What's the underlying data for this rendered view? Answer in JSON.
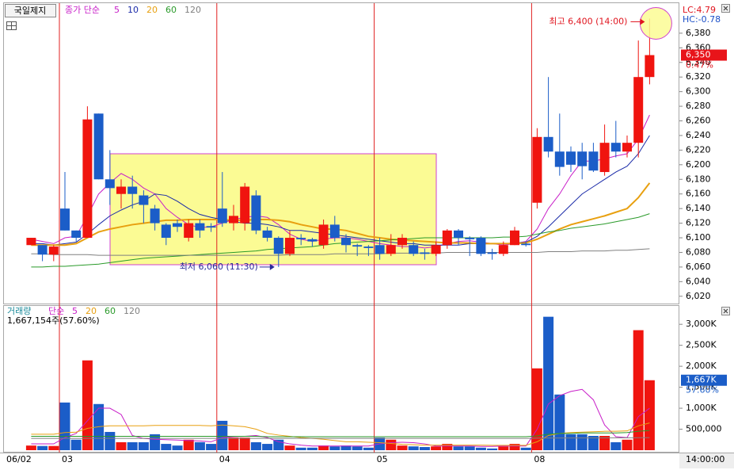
{
  "chart_data": [
    {
      "type": "candlestick",
      "title": "국일제지",
      "legend_title": "종가 단순",
      "categories": [
        "06/02",
        null,
        null,
        "03",
        null,
        null,
        null,
        null,
        null,
        null,
        null,
        null,
        null,
        null,
        null,
        null,
        null,
        "04",
        null,
        null,
        null,
        null,
        null,
        null,
        null,
        null,
        null,
        null,
        null,
        null,
        null,
        "05",
        null,
        null,
        null,
        null,
        null,
        null,
        null,
        null,
        null,
        null,
        null,
        null,
        null,
        "08",
        null,
        null,
        null,
        null,
        null,
        null,
        null,
        null,
        null,
        null
      ],
      "open": [
        6090,
        6090,
        6077,
        6140,
        6110,
        6100,
        6270,
        6180,
        6160,
        6170,
        6158,
        6140,
        6118,
        6120,
        6100,
        6120,
        6116,
        6140,
        6120,
        6120,
        6158,
        6110,
        6100,
        6078,
        6100,
        6098,
        6090,
        6118,
        6100,
        6090,
        6088,
        6090,
        6078,
        6090,
        6090,
        6080,
        6078,
        6090,
        6110,
        6100,
        6100,
        6080,
        6078,
        6090,
        6092,
        6148,
        6238,
        6218,
        6218,
        6218,
        6218,
        6190,
        6230,
        6218,
        6230,
        6320
      ],
      "high": [
        6100,
        6090,
        6090,
        6190,
        6110,
        6280,
        6270,
        6220,
        6180,
        6185,
        6165,
        6145,
        6120,
        6125,
        6125,
        6125,
        6120,
        6190,
        6145,
        6175,
        6165,
        6115,
        6102,
        6110,
        6105,
        6100,
        6125,
        6130,
        6105,
        6092,
        6090,
        6100,
        6105,
        6105,
        6095,
        6085,
        6095,
        6112,
        6112,
        6102,
        6102,
        6085,
        6095,
        6115,
        6095,
        6250,
        6320,
        6270,
        6225,
        6230,
        6230,
        6255,
        6260,
        6240,
        6370,
        6400
      ],
      "low": [
        6090,
        6068,
        6068,
        6110,
        6095,
        6100,
        6180,
        6145,
        6140,
        6140,
        6120,
        6110,
        6090,
        6108,
        6095,
        6100,
        6108,
        6115,
        6110,
        6110,
        6105,
        6095,
        6060,
        6075,
        6090,
        6088,
        6085,
        6095,
        6080,
        6075,
        6075,
        6070,
        6075,
        6085,
        6075,
        6070,
        6075,
        6085,
        6090,
        6075,
        6075,
        6070,
        6075,
        6090,
        6088,
        6140,
        6210,
        6185,
        6190,
        6180,
        6190,
        6185,
        6210,
        6210,
        6210,
        6310
      ],
      "close": [
        6100,
        6077,
        6088,
        6110,
        6100,
        6262,
        6180,
        6168,
        6170,
        6160,
        6145,
        6120,
        6100,
        6115,
        6120,
        6110,
        6114,
        6120,
        6130,
        6170,
        6110,
        6100,
        6078,
        6100,
        6098,
        6095,
        6118,
        6100,
        6090,
        6088,
        6086,
        6078,
        6090,
        6100,
        6078,
        6078,
        6090,
        6110,
        6100,
        6098,
        6078,
        6078,
        6090,
        6110,
        6090,
        6238,
        6218,
        6197,
        6200,
        6198,
        6192,
        6230,
        6218,
        6230,
        6320,
        6350
      ],
      "up_color": "#f0140f",
      "down_color": "#1b5dc8",
      "ylim": [
        6010,
        6420
      ],
      "yticks": [
        {
          "value": 6020,
          "label": "6,020"
        },
        {
          "value": 6040,
          "label": "6,040"
        },
        {
          "value": 6060,
          "label": "6,060"
        },
        {
          "value": 6080,
          "label": "6,080"
        },
        {
          "value": 6100,
          "label": "6,100"
        },
        {
          "value": 6120,
          "label": "6,120"
        },
        {
          "value": 6140,
          "label": "6,140"
        },
        {
          "value": 6160,
          "label": "6,160"
        },
        {
          "value": 6180,
          "label": "6,180"
        },
        {
          "value": 6200,
          "label": "6,200"
        },
        {
          "value": 6220,
          "label": "6,220"
        },
        {
          "value": 6240,
          "label": "6,240"
        },
        {
          "value": 6260,
          "label": "6,260"
        },
        {
          "value": 6280,
          "label": "6,280"
        },
        {
          "value": 6300,
          "label": "6,300"
        },
        {
          "value": 6320,
          "label": "6,320"
        },
        {
          "value": 6340,
          "label": "6,340"
        },
        {
          "value": 6360,
          "label": "6,360"
        },
        {
          "value": 6380,
          "label": "6,380"
        }
      ],
      "grid": false,
      "series": [
        {
          "name": "5",
          "color": "#c81ec8",
          "values": [
            6098,
            6095,
            6092,
            6100,
            6102,
            6130,
            6160,
            6175,
            6188,
            6180,
            6168,
            6160,
            6140,
            6128,
            6118,
            6114,
            6115,
            6120,
            6125,
            6128,
            6130,
            6128,
            6118,
            6105,
            6098,
            6095,
            6098,
            6100,
            6100,
            6098,
            6095,
            6092,
            6090,
            6088,
            6088,
            6086,
            6088,
            6092,
            6095,
            6096,
            6094,
            6092,
            6090,
            6092,
            6095,
            6112,
            6140,
            6160,
            6185,
            6205,
            6205,
            6208,
            6212,
            6215,
            6235,
            6268
          ]
        },
        {
          "name": "10",
          "color": "#1a2aa8",
          "values": [
            6092,
            6092,
            6090,
            6092,
            6094,
            6105,
            6118,
            6130,
            6138,
            6145,
            6150,
            6160,
            6158,
            6150,
            6140,
            6132,
            6128,
            6125,
            6122,
            6120,
            6120,
            6118,
            6115,
            6110,
            6110,
            6108,
            6106,
            6104,
            6102,
            6100,
            6098,
            6096,
            6094,
            6092,
            6092,
            6090,
            6090,
            6090,
            6090,
            6092,
            6092,
            6092,
            6092,
            6093,
            6094,
            6102,
            6115,
            6130,
            6145,
            6160,
            6170,
            6180,
            6190,
            6198,
            6215,
            6240
          ]
        },
        {
          "name": "20",
          "color": "#e8a010",
          "values": [
            6090,
            6090,
            6090,
            6090,
            6092,
            6100,
            6108,
            6112,
            6115,
            6118,
            6120,
            6122,
            6124,
            6124,
            6125,
            6125,
            6125,
            6125,
            6124,
            6124,
            6125,
            6125,
            6124,
            6122,
            6118,
            6115,
            6112,
            6112,
            6110,
            6106,
            6102,
            6100,
            6098,
            6097,
            6096,
            6095,
            6094,
            6093,
            6093,
            6093,
            6092,
            6092,
            6092,
            6092,
            6093,
            6098,
            6105,
            6112,
            6118,
            6122,
            6126,
            6130,
            6135,
            6140,
            6155,
            6175
          ]
        },
        {
          "name": "60",
          "color": "#2a9a2a",
          "values": [
            6060,
            6060,
            6061,
            6061,
            6062,
            6063,
            6064,
            6066,
            6068,
            6070,
            6072,
            6073,
            6074,
            6075,
            6076,
            6077,
            6078,
            6079,
            6080,
            6081,
            6082,
            6084,
            6085,
            6086,
            6087,
            6088,
            6090,
            6092,
            6093,
            6094,
            6095,
            6096,
            6097,
            6098,
            6099,
            6100,
            6100,
            6100,
            6100,
            6100,
            6100,
            6100,
            6101,
            6101,
            6102,
            6105,
            6108,
            6110,
            6113,
            6115,
            6117,
            6119,
            6122,
            6125,
            6128,
            6133
          ]
        },
        {
          "name": "120",
          "color": "#808080",
          "values": [
            6078,
            6078,
            6077,
            6077,
            6077,
            6077,
            6076,
            6076,
            6076,
            6076,
            6076,
            6076,
            6076,
            6076,
            6076,
            6076,
            6076,
            6076,
            6076,
            6076,
            6076,
            6076,
            6076,
            6077,
            6077,
            6077,
            6077,
            6078,
            6078,
            6078,
            6078,
            6078,
            6079,
            6079,
            6079,
            6079,
            6079,
            6080,
            6080,
            6080,
            6080,
            6080,
            6080,
            6080,
            6080,
            6080,
            6081,
            6081,
            6081,
            6082,
            6082,
            6082,
            6083,
            6083,
            6084,
            6085
          ]
        }
      ],
      "annotations": {
        "high": "최고 6,400 (14:00)",
        "low": "최저 6,060 (11:30)",
        "lc": "LC:4.79",
        "hc": "HC:-0.78",
        "last_price": "6,350",
        "change": "0.47%"
      }
    },
    {
      "type": "bar",
      "legend_title": "거래량",
      "ma_title": "단순",
      "values": [
        110000,
        100000,
        100000,
        1136000,
        250000,
        2140000,
        1100000,
        435000,
        190000,
        190000,
        190000,
        380000,
        150000,
        110000,
        250000,
        190000,
        150000,
        700000,
        300000,
        300000,
        190000,
        150000,
        250000,
        110000,
        60000,
        60000,
        110000,
        90000,
        110000,
        90000,
        60000,
        300000,
        250000,
        110000,
        90000,
        75000,
        90000,
        150000,
        90000,
        90000,
        60000,
        40000,
        90000,
        150000,
        60000,
        1950000,
        3180000,
        1326000,
        380000,
        380000,
        340000,
        340000,
        190000,
        250000,
        2860000,
        1667154
      ],
      "ylim": [
        0,
        3400000
      ],
      "yticks": [
        {
          "value": 500000,
          "label": "500,000"
        },
        {
          "value": 1000000,
          "label": "1,000K"
        },
        {
          "value": 1500000,
          "label": "1,500K"
        },
        {
          "value": 2000000,
          "label": "2,000K"
        },
        {
          "value": 2500000,
          "label": "2,500K"
        },
        {
          "value": 3000000,
          "label": "3,000K"
        }
      ],
      "series": [
        {
          "name": "5",
          "color": "#c81ec8",
          "values": [
            150000,
            150000,
            150000,
            300000,
            400000,
            700000,
            1000000,
            1000000,
            850000,
            350000,
            280000,
            260000,
            250000,
            240000,
            230000,
            220000,
            200000,
            300000,
            320000,
            330000,
            350000,
            300000,
            200000,
            150000,
            120000,
            100000,
            100000,
            100000,
            100000,
            100000,
            100000,
            150000,
            180000,
            190000,
            180000,
            150000,
            100000,
            100000,
            100000,
            100000,
            90000,
            90000,
            100000,
            100000,
            100000,
            500000,
            1100000,
            1300000,
            1400000,
            1450000,
            1200000,
            600000,
            320000,
            300000,
            800000,
            1000000
          ]
        },
        {
          "name": "20",
          "color": "#e8a010",
          "values": [
            380000,
            380000,
            380000,
            420000,
            430000,
            520000,
            560000,
            580000,
            580000,
            580000,
            580000,
            590000,
            590000,
            590000,
            590000,
            590000,
            580000,
            600000,
            580000,
            560000,
            500000,
            400000,
            360000,
            330000,
            300000,
            280000,
            260000,
            230000,
            200000,
            200000,
            190000,
            180000,
            160000,
            140000,
            130000,
            120000,
            120000,
            120000,
            120000,
            120000,
            120000,
            115000,
            115000,
            115000,
            115000,
            200000,
            350000,
            400000,
            420000,
            430000,
            440000,
            450000,
            450000,
            460000,
            580000,
            650000
          ]
        },
        {
          "name": "60",
          "color": "#2a9a2a",
          "values": [
            330000,
            330000,
            330000,
            330000,
            330000,
            330000,
            330000,
            330000,
            330000,
            330000,
            330000,
            330000,
            330000,
            330000,
            330000,
            330000,
            330000,
            330000,
            330000,
            330000,
            330000,
            320000,
            320000,
            320000,
            320000,
            320000,
            320000,
            320000,
            320000,
            320000,
            320000,
            320000,
            320000,
            320000,
            320000,
            320000,
            320000,
            320000,
            320000,
            320000,
            320000,
            320000,
            320000,
            320000,
            320000,
            340000,
            380000,
            400000,
            400000,
            410000,
            410000,
            410000,
            410000,
            420000,
            450000,
            470000
          ]
        },
        {
          "name": "120",
          "color": "#808080",
          "values": [
            280000,
            280000,
            280000,
            280000,
            280000,
            280000,
            280000,
            280000,
            280000,
            280000,
            280000,
            280000,
            280000,
            280000,
            280000,
            280000,
            280000,
            280000,
            280000,
            280000,
            280000,
            280000,
            280000,
            280000,
            280000,
            280000,
            280000,
            280000,
            280000,
            280000,
            280000,
            280000,
            280000,
            280000,
            280000,
            280000,
            280000,
            280000,
            280000,
            280000,
            280000,
            280000,
            280000,
            280000,
            280000,
            285000,
            290000,
            290000,
            290000,
            292000,
            292000,
            294000,
            294000,
            296000,
            298000,
            300000
          ]
        }
      ],
      "annotations": {
        "info": "1,667,154주(57.60%)",
        "last_volume": "1,667K",
        "ratio": "57.60%",
        "time": "14:00:00"
      }
    }
  ]
}
